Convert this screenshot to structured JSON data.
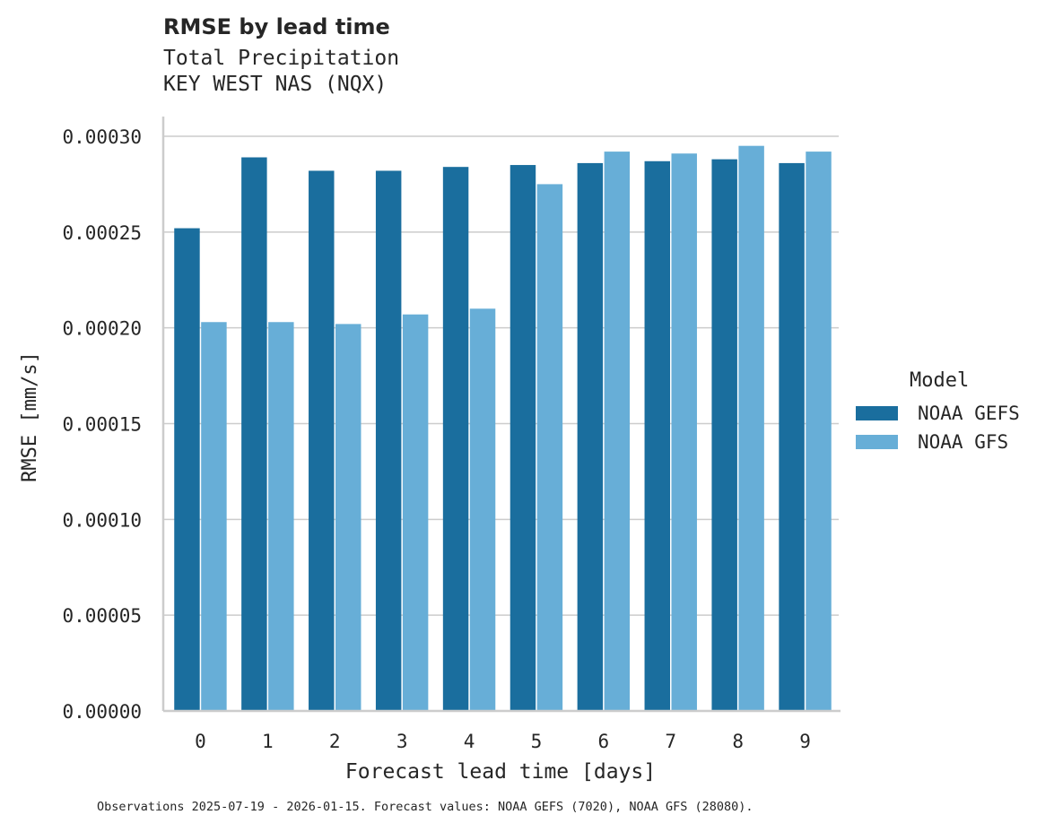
{
  "header": {
    "title": "RMSE by lead time",
    "subtitle_1": "Total Precipitation",
    "subtitle_2": "KEY WEST NAS (NQX)"
  },
  "legend": {
    "title": "Model",
    "items": [
      {
        "label": "NOAA GEFS",
        "color": "#1a6e9e"
      },
      {
        "label": "NOAA GFS",
        "color": "#67aed7"
      }
    ]
  },
  "footer": "Observations 2025-07-19 - 2026-01-15. Forecast values: NOAA GEFS (7020), NOAA GFS (28080).",
  "chart_data": {
    "type": "bar",
    "title": "RMSE by lead time",
    "subtitle": "Total Precipitation / KEY WEST NAS (NQX)",
    "xlabel": "Forecast lead time [days]",
    "ylabel": "RMSE [mm/s]",
    "categories": [
      "0",
      "1",
      "2",
      "3",
      "4",
      "5",
      "6",
      "7",
      "8",
      "9"
    ],
    "yticks": [
      "0.00000",
      "0.00005",
      "0.00010",
      "0.00015",
      "0.00020",
      "0.00025",
      "0.00030"
    ],
    "ylim": [
      0,
      0.00031
    ],
    "grid": "y",
    "legend_position": "right",
    "series": [
      {
        "name": "NOAA GEFS",
        "color": "#1a6e9e",
        "values": [
          0.000252,
          0.000289,
          0.000282,
          0.000282,
          0.000284,
          0.000285,
          0.000286,
          0.000287,
          0.000288,
          0.000286
        ]
      },
      {
        "name": "NOAA GFS",
        "color": "#67aed7",
        "values": [
          0.000203,
          0.000203,
          0.000202,
          0.000207,
          0.00021,
          0.000275,
          0.000292,
          0.000291,
          0.000295,
          0.000292
        ]
      }
    ]
  }
}
